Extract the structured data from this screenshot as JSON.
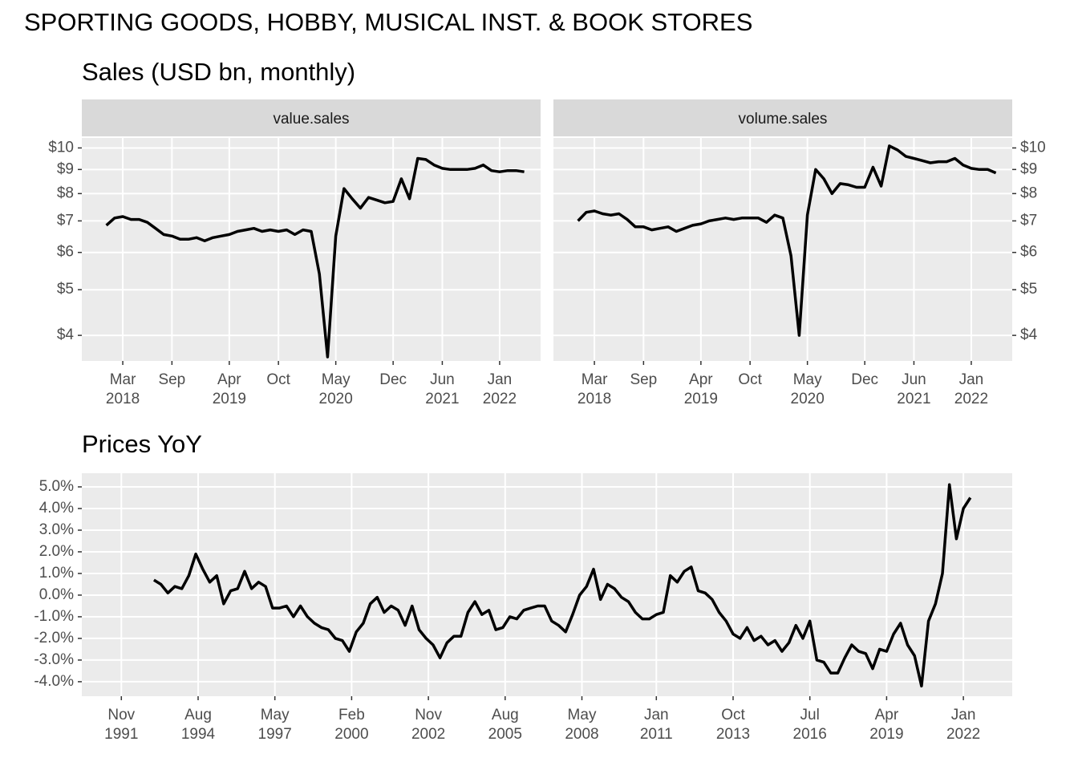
{
  "title": "SPORTING GOODS, HOBBY, MUSICAL INST. & BOOK STORES",
  "chart_data": [
    {
      "type": "line",
      "title": "Sales (USD bn, monthly)",
      "facets": true,
      "log_y": true,
      "grid": true,
      "x": [
        "2018-01",
        "2018-02",
        "2018-03",
        "2018-04",
        "2018-05",
        "2018-06",
        "2018-07",
        "2018-08",
        "2018-09",
        "2018-10",
        "2018-11",
        "2018-12",
        "2019-01",
        "2019-02",
        "2019-03",
        "2019-04",
        "2019-05",
        "2019-06",
        "2019-07",
        "2019-08",
        "2019-09",
        "2019-10",
        "2019-11",
        "2019-12",
        "2020-01",
        "2020-02",
        "2020-03",
        "2020-04",
        "2020-05",
        "2020-06",
        "2020-07",
        "2020-08",
        "2020-09",
        "2020-10",
        "2020-11",
        "2020-12",
        "2021-01",
        "2021-02",
        "2021-03",
        "2021-04",
        "2021-05",
        "2021-06",
        "2021-07",
        "2021-08",
        "2021-09",
        "2021-10",
        "2021-11",
        "2021-12",
        "2022-01",
        "2022-02",
        "2022-03",
        "2022-04"
      ],
      "series": [
        {
          "name": "value.sales",
          "color": "#000000",
          "values": [
            6.85,
            7.1,
            7.15,
            7.05,
            7.05,
            6.95,
            6.75,
            6.55,
            6.5,
            6.4,
            6.4,
            6.45,
            6.35,
            6.45,
            6.5,
            6.55,
            6.65,
            6.7,
            6.75,
            6.65,
            6.7,
            6.65,
            6.7,
            6.55,
            6.7,
            6.65,
            5.4,
            3.6,
            6.5,
            8.2,
            7.8,
            7.45,
            7.85,
            7.75,
            7.65,
            7.7,
            8.6,
            7.8,
            9.5,
            9.45,
            9.2,
            9.05,
            9.0,
            9.0,
            9.0,
            9.05,
            9.2,
            8.95,
            8.9,
            8.95,
            8.95,
            8.9
          ]
        },
        {
          "name": "volume.sales",
          "color": "#000000",
          "values": [
            7.0,
            7.3,
            7.35,
            7.25,
            7.2,
            7.25,
            7.05,
            6.8,
            6.8,
            6.7,
            6.75,
            6.8,
            6.65,
            6.75,
            6.85,
            6.9,
            7.0,
            7.05,
            7.1,
            7.05,
            7.1,
            7.1,
            7.1,
            6.95,
            7.2,
            7.1,
            5.9,
            4.0,
            7.2,
            9.0,
            8.6,
            8.0,
            8.4,
            8.35,
            8.25,
            8.25,
            9.1,
            8.3,
            10.1,
            9.9,
            9.6,
            9.5,
            9.4,
            9.3,
            9.35,
            9.35,
            9.5,
            9.2,
            9.05,
            9.0,
            9.0,
            8.85
          ]
        }
      ],
      "xlim": [
        "2017-10",
        "2022-06"
      ],
      "xticks": [
        {
          "value": "2018-03",
          "label": "Mar\n2018"
        },
        {
          "value": "2018-09",
          "label": "Sep"
        },
        {
          "value": "2019-04",
          "label": "Apr\n2019"
        },
        {
          "value": "2019-10",
          "label": "Oct"
        },
        {
          "value": "2020-05",
          "label": "May\n2020"
        },
        {
          "value": "2020-12",
          "label": "Dec"
        },
        {
          "value": "2021-06",
          "label": "Jun\n2021"
        },
        {
          "value": "2022-01",
          "label": "Jan\n2022"
        }
      ],
      "ylim": [
        3.53,
        10.5
      ],
      "yticks": [
        {
          "value": 4,
          "label": "$4"
        },
        {
          "value": 5,
          "label": "$5"
        },
        {
          "value": 6,
          "label": "$6"
        },
        {
          "value": 7,
          "label": "$7"
        },
        {
          "value": 8,
          "label": "$8"
        },
        {
          "value": 9,
          "label": "$9"
        },
        {
          "value": 10,
          "label": "$10"
        }
      ]
    },
    {
      "type": "line",
      "title": "Prices YoY",
      "grid": true,
      "color": "#000000",
      "x": [
        "1993-01",
        "1993-04",
        "1993-07",
        "1993-10",
        "1994-01",
        "1994-04",
        "1994-07",
        "1994-10",
        "1995-01",
        "1995-04",
        "1995-07",
        "1995-10",
        "1996-01",
        "1996-04",
        "1996-07",
        "1996-10",
        "1997-01",
        "1997-04",
        "1997-07",
        "1997-10",
        "1998-01",
        "1998-04",
        "1998-07",
        "1998-10",
        "1999-01",
        "1999-04",
        "1999-07",
        "1999-10",
        "2000-01",
        "2000-04",
        "2000-07",
        "2000-10",
        "2001-01",
        "2001-04",
        "2001-07",
        "2001-10",
        "2002-01",
        "2002-04",
        "2002-07",
        "2002-10",
        "2003-01",
        "2003-04",
        "2003-07",
        "2003-10",
        "2004-01",
        "2004-04",
        "2004-07",
        "2004-10",
        "2005-01",
        "2005-04",
        "2005-07",
        "2005-10",
        "2006-01",
        "2006-04",
        "2006-07",
        "2006-10",
        "2007-01",
        "2007-04",
        "2007-07",
        "2007-10",
        "2008-01",
        "2008-04",
        "2008-07",
        "2008-10",
        "2009-01",
        "2009-04",
        "2009-07",
        "2009-10",
        "2010-01",
        "2010-04",
        "2010-07",
        "2010-10",
        "2011-01",
        "2011-04",
        "2011-07",
        "2011-10",
        "2012-01",
        "2012-04",
        "2012-07",
        "2012-10",
        "2013-01",
        "2013-04",
        "2013-07",
        "2013-10",
        "2014-01",
        "2014-04",
        "2014-07",
        "2014-10",
        "2015-01",
        "2015-04",
        "2015-07",
        "2015-10",
        "2016-01",
        "2016-04",
        "2016-07",
        "2016-10",
        "2017-01",
        "2017-04",
        "2017-07",
        "2017-10",
        "2018-01",
        "2018-04",
        "2018-07",
        "2018-10",
        "2019-01",
        "2019-04",
        "2019-07",
        "2019-10",
        "2020-01",
        "2020-04",
        "2020-07",
        "2020-10",
        "2021-01",
        "2021-04",
        "2021-07",
        "2021-10",
        "2022-01",
        "2022-04"
      ],
      "values": [
        0.7,
        0.5,
        0.1,
        0.4,
        0.3,
        0.9,
        1.9,
        1.2,
        0.6,
        0.9,
        -0.4,
        0.2,
        0.3,
        1.1,
        0.3,
        0.6,
        0.4,
        -0.6,
        -0.6,
        -0.5,
        -1.0,
        -0.5,
        -1.0,
        -1.3,
        -1.5,
        -1.6,
        -2.0,
        -2.1,
        -2.6,
        -1.7,
        -1.3,
        -0.4,
        -0.1,
        -0.8,
        -0.5,
        -0.7,
        -1.4,
        -0.5,
        -1.6,
        -2.0,
        -2.3,
        -2.9,
        -2.2,
        -1.9,
        -1.9,
        -0.8,
        -0.3,
        -0.9,
        -0.7,
        -1.6,
        -1.5,
        -1.0,
        -1.1,
        -0.7,
        -0.6,
        -0.5,
        -0.5,
        -1.2,
        -1.4,
        -1.7,
        -0.9,
        0.0,
        0.4,
        1.2,
        -0.2,
        0.5,
        0.3,
        -0.1,
        -0.3,
        -0.8,
        -1.1,
        -1.1,
        -0.9,
        -0.8,
        0.9,
        0.6,
        1.1,
        1.3,
        0.2,
        0.1,
        -0.2,
        -0.8,
        -1.2,
        -1.8,
        -2.0,
        -1.5,
        -2.1,
        -1.9,
        -2.3,
        -2.1,
        -2.6,
        -2.2,
        -1.4,
        -2.0,
        -1.2,
        -3.0,
        -3.1,
        -3.6,
        -3.6,
        -2.9,
        -2.3,
        -2.6,
        -2.7,
        -3.4,
        -2.5,
        -2.6,
        -1.8,
        -1.3,
        -2.3,
        -2.8,
        -4.2,
        -1.2,
        -0.4,
        1.0,
        5.1,
        2.6,
        4.0,
        4.5
      ],
      "xlim": [
        "1990-06",
        "2023-10"
      ],
      "xticks": [
        {
          "value": "1991-11",
          "label": "Nov\n1991"
        },
        {
          "value": "1994-08",
          "label": "Aug\n1994"
        },
        {
          "value": "1997-05",
          "label": "May\n1997"
        },
        {
          "value": "2000-02",
          "label": "Feb\n2000"
        },
        {
          "value": "2002-11",
          "label": "Nov\n2002"
        },
        {
          "value": "2005-08",
          "label": "Aug\n2005"
        },
        {
          "value": "2008-05",
          "label": "May\n2008"
        },
        {
          "value": "2011-01",
          "label": "Jan\n2011"
        },
        {
          "value": "2013-10",
          "label": "Oct\n2013"
        },
        {
          "value": "2016-07",
          "label": "Jul\n2016"
        },
        {
          "value": "2019-04",
          "label": "Apr\n2019"
        },
        {
          "value": "2022-01",
          "label": "Jan\n2022"
        }
      ],
      "ylim": [
        -4.67,
        5.63
      ],
      "yticks": [
        {
          "value": 5,
          "label": "5.0%"
        },
        {
          "value": 4,
          "label": "4.0%"
        },
        {
          "value": 3,
          "label": "3.0%"
        },
        {
          "value": 2,
          "label": "2.0%"
        },
        {
          "value": 1,
          "label": "1.0%"
        },
        {
          "value": 0,
          "label": "0.0%"
        },
        {
          "value": -1,
          "label": "-1.0%"
        },
        {
          "value": -2,
          "label": "-2.0%"
        },
        {
          "value": -3,
          "label": "-3.0%"
        },
        {
          "value": -4,
          "label": "-4.0%"
        }
      ]
    }
  ]
}
